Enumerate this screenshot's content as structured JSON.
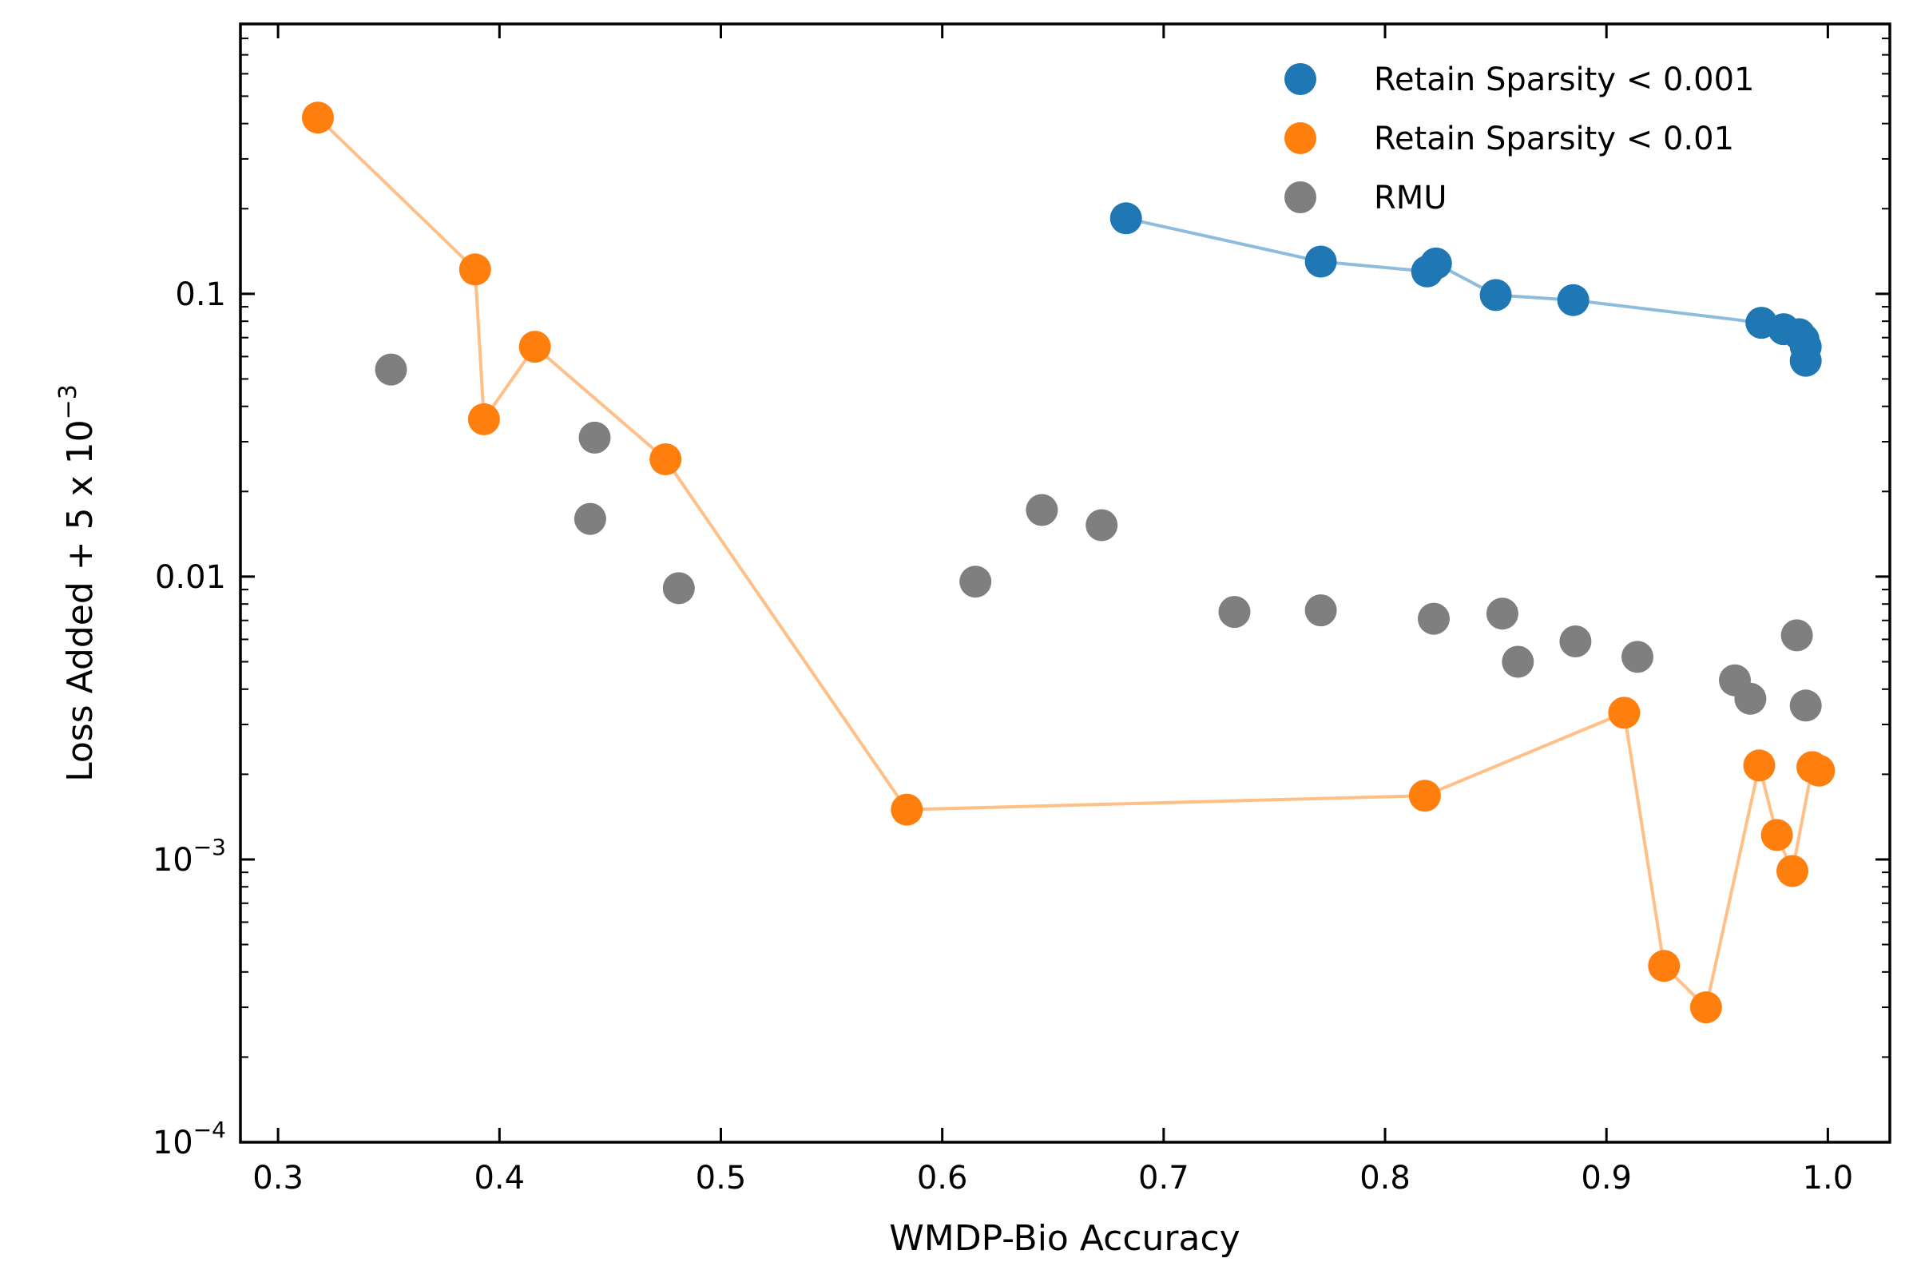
{
  "chart_data": {
    "type": "scatter",
    "title": "",
    "xlabel": "WMDP-Bio Accuracy",
    "ylabel": "Loss Added + 5 x 10",
    "ylabel_exponent": "−3",
    "xscale": "linear",
    "yscale": "log",
    "xlim": [
      0.283,
      1.028
    ],
    "ylim": [
      0.0001,
      0.9
    ],
    "xticks": [
      0.3,
      0.4,
      0.5,
      0.6,
      0.7,
      0.8,
      0.9,
      1.0
    ],
    "xtick_labels": [
      "0.3",
      "0.4",
      "0.5",
      "0.6",
      "0.7",
      "0.8",
      "0.9",
      "1.0"
    ],
    "yticks": [
      {
        "value": 0.0001,
        "base": "10",
        "exp": "−4"
      },
      {
        "value": 0.001,
        "base": "10",
        "exp": "−3"
      },
      {
        "value": 0.01,
        "base": "0.01",
        "exp": ""
      },
      {
        "value": 0.1,
        "base": "0.1",
        "exp": ""
      }
    ],
    "grid": false,
    "legend_position": "top-right",
    "series": [
      {
        "name": "Retain Sparsity < 0.001",
        "color": "#1f77b4",
        "line_color": "#8fbcdc",
        "connected": true,
        "points": [
          [
            0.683,
            0.185
          ],
          [
            0.771,
            0.13
          ],
          [
            0.819,
            0.12
          ],
          [
            0.823,
            0.128
          ],
          [
            0.85,
            0.099
          ],
          [
            0.885,
            0.095
          ],
          [
            0.97,
            0.079
          ],
          [
            0.98,
            0.075
          ],
          [
            0.987,
            0.072
          ],
          [
            0.989,
            0.069
          ],
          [
            0.99,
            0.065
          ],
          [
            0.99,
            0.058
          ]
        ]
      },
      {
        "name": "Retain Sparsity < 0.01",
        "color": "#ff7f0e",
        "line_color": "#ffbf87",
        "connected": true,
        "points": [
          [
            0.318,
            0.42
          ],
          [
            0.389,
            0.122
          ],
          [
            0.393,
            0.036
          ],
          [
            0.416,
            0.065
          ],
          [
            0.475,
            0.026
          ],
          [
            0.584,
            0.0015
          ],
          [
            0.818,
            0.00168
          ],
          [
            0.908,
            0.0033
          ],
          [
            0.926,
            0.00042
          ],
          [
            0.945,
            0.0003
          ],
          [
            0.969,
            0.00215
          ],
          [
            0.977,
            0.00122
          ],
          [
            0.984,
            0.00091
          ],
          [
            0.993,
            0.00212
          ],
          [
            0.996,
            0.00206
          ]
        ]
      },
      {
        "name": "RMU",
        "color": "#7f7f7f",
        "connected": false,
        "points": [
          [
            0.351,
            0.054
          ],
          [
            0.443,
            0.031
          ],
          [
            0.441,
            0.016
          ],
          [
            0.481,
            0.0091
          ],
          [
            0.615,
            0.0096
          ],
          [
            0.645,
            0.0172
          ],
          [
            0.672,
            0.0152
          ],
          [
            0.732,
            0.0075
          ],
          [
            0.771,
            0.0076
          ],
          [
            0.822,
            0.0071
          ],
          [
            0.853,
            0.0074
          ],
          [
            0.86,
            0.005
          ],
          [
            0.886,
            0.0059
          ],
          [
            0.914,
            0.0052
          ],
          [
            0.958,
            0.0043
          ],
          [
            0.965,
            0.0037
          ],
          [
            0.986,
            0.0062
          ],
          [
            0.99,
            0.0035
          ]
        ]
      }
    ]
  }
}
